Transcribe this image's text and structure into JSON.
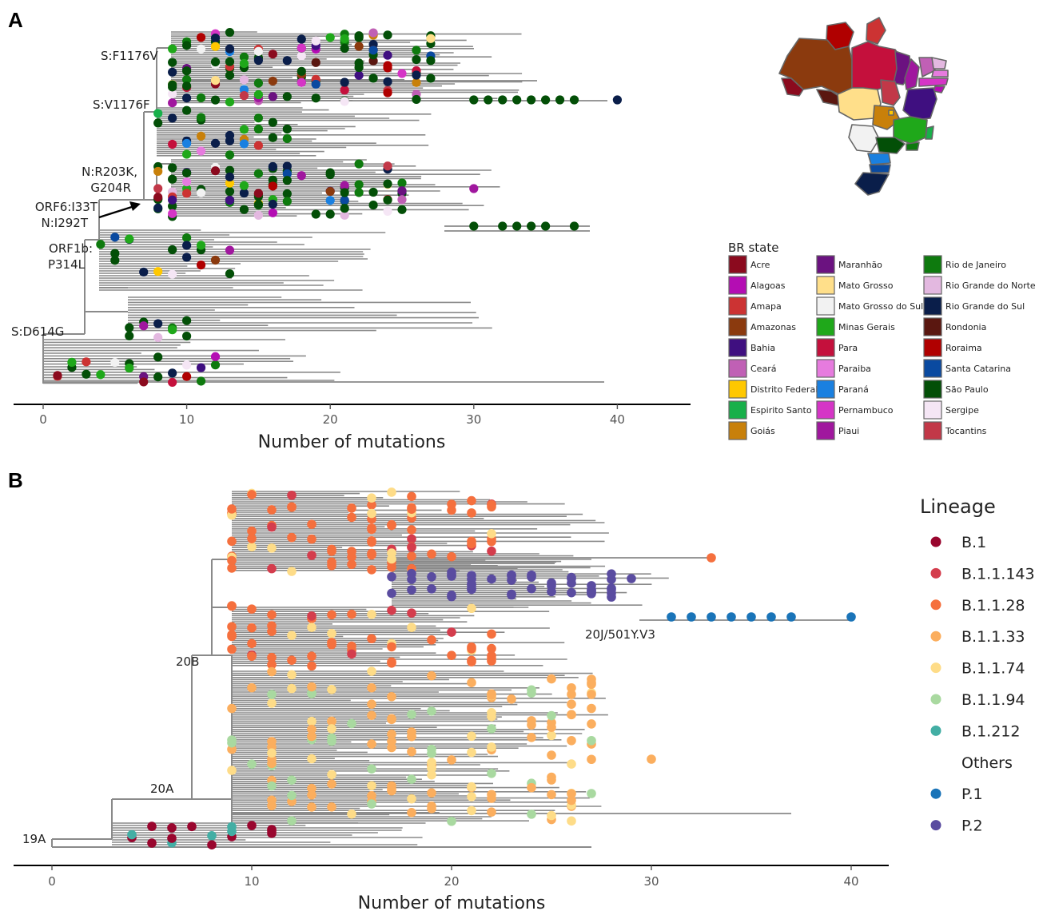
{
  "panels": {
    "a_label": "A",
    "b_label": "B"
  },
  "chart_data": [
    {
      "type": "scatter",
      "subtype": "phylogenetic-tree",
      "panel": "A",
      "xlabel": "Number of mutations",
      "xlim": [
        0,
        45
      ],
      "xticks": [
        0,
        10,
        20,
        30,
        40
      ],
      "annotations": [
        "S:F1176V",
        "S:V1176F",
        "N:R203K,",
        "G204R",
        "ORF6:I33T",
        "N:I292T",
        "ORF1b:",
        "P314L",
        "S:D614G"
      ],
      "legend_title": "BR state",
      "legend_position": "bottom-right",
      "legend": [
        {
          "name": "Acre",
          "color": "#8B0A1E"
        },
        {
          "name": "Alagoas",
          "color": "#B40DB3"
        },
        {
          "name": "Amapa",
          "color": "#CC3333"
        },
        {
          "name": "Amazonas",
          "color": "#8B3A0E"
        },
        {
          "name": "Bahia",
          "color": "#3F0F80"
        },
        {
          "name": "Ceará",
          "color": "#C060B5"
        },
        {
          "name": "Distrito Federal",
          "color": "#FFC800"
        },
        {
          "name": "Espirito Santo",
          "color": "#18B04A"
        },
        {
          "name": "Goiás",
          "color": "#C8800A"
        },
        {
          "name": "Maranhão",
          "color": "#6B1280"
        },
        {
          "name": "Mato Grosso",
          "color": "#FFDF8A"
        },
        {
          "name": "Mato Grosso do Sul",
          "color": "#F2F2F2"
        },
        {
          "name": "Minas Gerais",
          "color": "#1FA81A"
        },
        {
          "name": "Para",
          "color": "#C4103C"
        },
        {
          "name": "Paraiba",
          "color": "#E67BDE"
        },
        {
          "name": "Paraná",
          "color": "#1A80E0"
        },
        {
          "name": "Pernambuco",
          "color": "#D535C6"
        },
        {
          "name": "Piaui",
          "color": "#A0179E"
        },
        {
          "name": "Rio de Janeiro",
          "color": "#0E7A0E"
        },
        {
          "name": "Rio Grande do Norte",
          "color": "#E3B8E0"
        },
        {
          "name": "Rio Grande do Sul",
          "color": "#0A1E4A"
        },
        {
          "name": "Rondonia",
          "color": "#5A1710"
        },
        {
          "name": "Roraima",
          "color": "#B00000"
        },
        {
          "name": "Santa Catarina",
          "color": "#0A4AA0"
        },
        {
          "name": "São Paulo",
          "color": "#034F07"
        },
        {
          "name": "Sergipe",
          "color": "#F5E6F5"
        },
        {
          "name": "Tocantins",
          "color": "#C23848"
        }
      ]
    },
    {
      "type": "scatter",
      "subtype": "phylogenetic-tree",
      "panel": "B",
      "xlabel": "Number of mutations",
      "xlim": [
        0,
        42
      ],
      "xticks": [
        0,
        10,
        20,
        30,
        40
      ],
      "annotations": [
        "19A",
        "20A",
        "20B",
        "20J/501Y.V3"
      ],
      "legend_title": "Lineage",
      "legend_position": "right",
      "legend": [
        {
          "name": "B.1",
          "color": "#99062E"
        },
        {
          "name": "B.1.1.143",
          "color": "#D43D4D"
        },
        {
          "name": "B.1.1.28",
          "color": "#F5703E"
        },
        {
          "name": "B.1.1.33",
          "color": "#FBAE5E"
        },
        {
          "name": "B.1.1.74",
          "color": "#FEDC88"
        },
        {
          "name": "B.1.1.94",
          "color": "#A9D9A0"
        },
        {
          "name": "B.1.212",
          "color": "#43AEA4"
        },
        {
          "name": "Others",
          "color": ""
        },
        {
          "name": "P.1",
          "color": "#1A74B8"
        },
        {
          "name": "P.2",
          "color": "#5A4CA0"
        }
      ]
    }
  ]
}
